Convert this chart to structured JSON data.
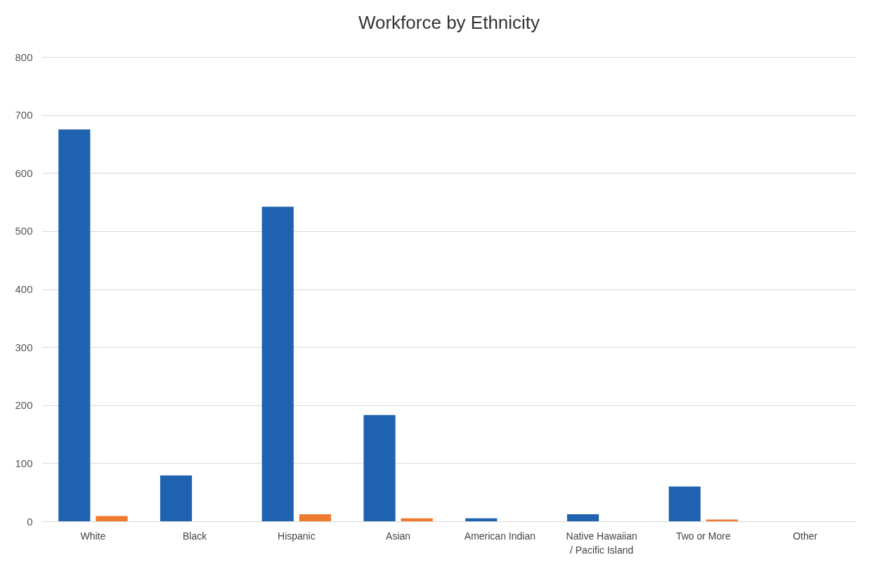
{
  "chart_data": {
    "type": "bar",
    "title": "Workforce by Ethnicity",
    "categories": [
      "White",
      "Black",
      "Hispanic",
      "Asian",
      "American Indian",
      "Native Hawaiian / Pacific Island",
      "Two or More",
      "Other"
    ],
    "series": [
      {
        "color": "#1f63b0",
        "values": [
          675,
          79,
          542,
          183,
          5,
          12,
          60,
          null
        ]
      },
      {
        "color": "#ee7a2e",
        "values": [
          9,
          null,
          12,
          5,
          null,
          null,
          3,
          null
        ]
      }
    ],
    "ylim": [
      0,
      800
    ],
    "yticks": [
      0,
      100,
      200,
      300,
      400,
      500,
      600,
      700,
      800
    ],
    "grid": "y",
    "legend": false
  }
}
